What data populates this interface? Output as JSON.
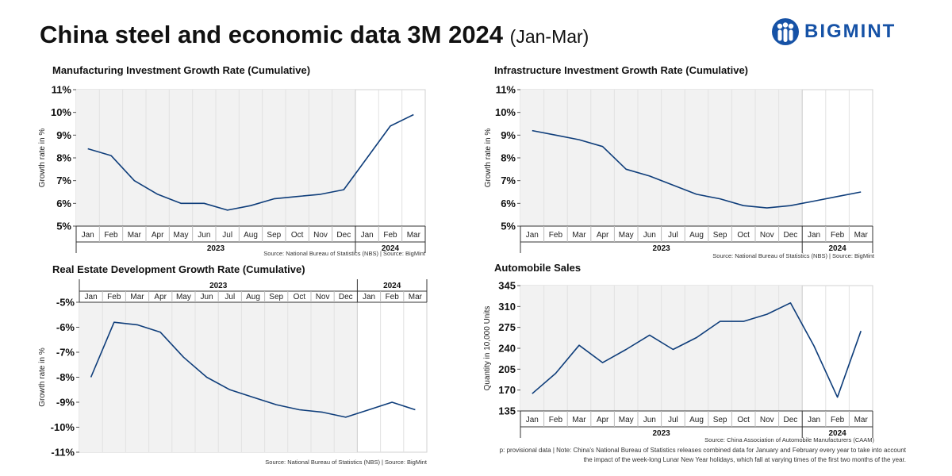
{
  "page": {
    "title": "China steel and economic data 3M 2024",
    "title_sub": "(Jan-Mar)",
    "logo_text": "BIGMINT",
    "footnote_line1": "p: provisional data | Note: China's National Bureau of Statistics releases combined data for January and February every year to take into account",
    "footnote_line2": "the impact of the week-long Lunar New Year holidays, which fall at varying times of the first two months of the year."
  },
  "colors": {
    "line": "#0e3d7a",
    "shade": "#f2f2f2",
    "logo": "#1652a6"
  },
  "chart_data": [
    {
      "id": "manufacturing",
      "type": "line",
      "title": "Manufacturing Investment Growth Rate (Cumulative)",
      "ylabel": "Growth rate in %",
      "source": "Source: National Bureau of Statistics (NBS) | Source: BigMint",
      "categories": [
        "Jan",
        "Feb",
        "Mar",
        "Apr",
        "May",
        "Jun",
        "Jul",
        "Aug",
        "Sep",
        "Oct",
        "Nov",
        "Dec",
        "Jan",
        "Feb",
        "Mar"
      ],
      "year_groups": [
        {
          "label": "2023",
          "count": 12
        },
        {
          "label": "2024",
          "count": 3
        }
      ],
      "values": [
        8.4,
        8.1,
        7.0,
        6.4,
        6.0,
        6.0,
        5.7,
        5.9,
        6.2,
        6.3,
        6.4,
        6.6,
        8.0,
        9.4,
        9.9
      ],
      "ylim": [
        5,
        11
      ],
      "yticks": [
        5,
        6,
        7,
        8,
        9,
        10,
        11
      ],
      "ytick_labels": [
        "5%",
        "6%",
        "7%",
        "8%",
        "9%",
        "10%",
        "11%"
      ],
      "axis_position": "bottom"
    },
    {
      "id": "infrastructure",
      "type": "line",
      "title": "Infrastructure Investment Growth Rate (Cumulative)",
      "ylabel": "Growth rate in %",
      "source": "Source: National Bureau of Statistics (NBS) | Source: BigMint",
      "categories": [
        "Jan",
        "Feb",
        "Mar",
        "Apr",
        "May",
        "Jun",
        "Jul",
        "Aug",
        "Sep",
        "Oct",
        "Nov",
        "Dec",
        "Jan",
        "Feb",
        "Mar"
      ],
      "year_groups": [
        {
          "label": "2023",
          "count": 12
        },
        {
          "label": "2024",
          "count": 3
        }
      ],
      "values": [
        9.2,
        9.0,
        8.8,
        8.5,
        7.5,
        7.2,
        6.8,
        6.4,
        6.2,
        5.9,
        5.8,
        5.9,
        6.1,
        6.3,
        6.5
      ],
      "ylim": [
        5,
        11
      ],
      "yticks": [
        5,
        6,
        7,
        8,
        9,
        10,
        11
      ],
      "ytick_labels": [
        "5%",
        "6%",
        "7%",
        "8%",
        "9%",
        "10%",
        "11%"
      ],
      "axis_position": "bottom"
    },
    {
      "id": "realestate",
      "type": "line",
      "title": "Real Estate Development Growth Rate (Cumulative)",
      "ylabel": "Growth rate in %",
      "source": "Source: National Bureau of Statistics (NBS) | Source: BigMint",
      "categories": [
        "Jan",
        "Feb",
        "Mar",
        "Apr",
        "May",
        "Jun",
        "Jul",
        "Aug",
        "Sep",
        "Oct",
        "Nov",
        "Dec",
        "Jan",
        "Feb",
        "Mar"
      ],
      "year_groups": [
        {
          "label": "2023",
          "count": 12
        },
        {
          "label": "2024",
          "count": 3
        }
      ],
      "values": [
        -8.0,
        -5.8,
        -5.9,
        -6.2,
        -7.2,
        -8.0,
        -8.5,
        -8.8,
        -9.1,
        -9.3,
        -9.4,
        -9.6,
        -9.3,
        -9.0,
        -9.3
      ],
      "ylim": [
        -11,
        -5
      ],
      "yticks": [
        -5,
        -6,
        -7,
        -8,
        -9,
        -10,
        -11
      ],
      "ytick_labels": [
        "-5%",
        "-6%",
        "-7%",
        "-8%",
        "-9%",
        "-10%",
        "-11%"
      ],
      "axis_position": "top"
    },
    {
      "id": "automobile",
      "type": "line",
      "title": "Automobile Sales",
      "ylabel": "Quantity in 10,000 Units",
      "source": "Source: China Association of Automobile Manufacturers (CAAM)",
      "categories": [
        "Jan",
        "Feb",
        "Mar",
        "Apr",
        "May",
        "Jun",
        "Jul",
        "Aug",
        "Sep",
        "Oct",
        "Nov",
        "Dec",
        "Jan",
        "Feb",
        "Mar"
      ],
      "year_groups": [
        {
          "label": "2023",
          "count": 12
        },
        {
          "label": "2024",
          "count": 3
        }
      ],
      "values": [
        164,
        198,
        245,
        216,
        238,
        262,
        238,
        258,
        285,
        285,
        297,
        316,
        244,
        158,
        269
      ],
      "ylim": [
        135,
        345
      ],
      "yticks": [
        135,
        170,
        205,
        240,
        275,
        310,
        345
      ],
      "ytick_labels": [
        "135",
        "170",
        "205",
        "240",
        "275",
        "310",
        "345"
      ],
      "axis_position": "bottom"
    }
  ]
}
